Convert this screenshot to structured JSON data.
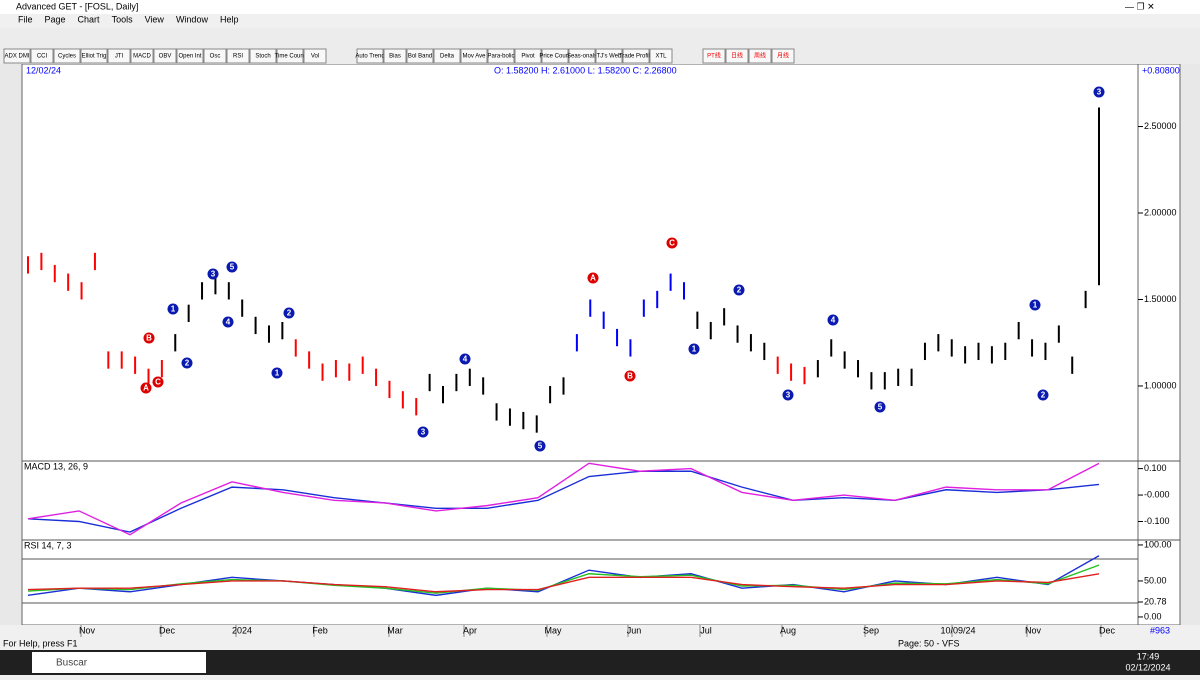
{
  "window": {
    "title": "Advanced GET - [FOSL, Daily]",
    "menu": [
      "File",
      "Page",
      "Chart",
      "Tools",
      "View",
      "Window",
      "Help"
    ]
  },
  "toolbar": [
    "ADX DMI",
    "CCI",
    "Cycles",
    "Elliot Trig",
    "JTI",
    "MACD",
    "OBV",
    "Open Int",
    "Osc",
    "RSI",
    "Stoch",
    "Time Count",
    "Vol",
    "Auto Trend",
    "Bias",
    "Bol Band",
    "Delta",
    "Mov Ave",
    "Para-bolic",
    "Pivot",
    "Price Count",
    "Seas-onals",
    "TJ's Web",
    "Trade Profile",
    "XTL",
    "PT线",
    "日线",
    "周线",
    "月线"
  ],
  "price_chart": {
    "date": "12/02/24",
    "ohlc": "O: 1.58200  H: 2.61000  L: 1.58200  C: 2.26800",
    "change": "+0.80800",
    "ylim": [
      0.572,
      2.85
    ],
    "yticks": [
      {
        "value": 2.5,
        "label": "2.50000"
      },
      {
        "value": 2,
        "label": "2.00000"
      },
      {
        "value": 1.5,
        "label": "1.50000"
      },
      {
        "value": 1,
        "label": "1.00000"
      }
    ],
    "low": [
      1.65,
      1.67,
      1.6,
      1.55,
      1.5,
      1.67,
      1.1,
      1.1,
      1.07,
      1.0,
      1.05,
      1.2,
      1.37,
      1.5,
      1.53,
      1.5,
      1.4,
      1.3,
      1.25,
      1.27,
      1.17,
      1.1,
      1.03,
      1.05,
      1.03,
      1.07,
      1.0,
      0.93,
      0.87,
      0.83,
      0.97,
      0.9,
      0.97,
      1.0,
      0.95,
      0.8,
      0.77,
      0.75,
      0.73,
      0.9,
      0.95,
      1.2,
      1.4,
      1.33,
      1.23,
      1.17,
      1.4,
      1.45,
      1.55,
      1.5,
      1.33,
      1.27,
      1.35,
      1.25,
      1.2,
      1.15,
      1.07,
      1.03,
      1.01,
      1.05,
      1.17,
      1.1,
      1.05,
      0.98,
      0.98,
      1.0,
      1.0,
      1.15,
      1.2,
      1.17,
      1.13,
      1.15,
      1.13,
      1.15,
      1.27,
      1.17,
      1.15,
      1.25,
      1.07,
      1.45,
      1.582
    ],
    "high": [
      1.75,
      1.77,
      1.7,
      1.65,
      1.6,
      1.77,
      1.2,
      1.2,
      1.17,
      1.1,
      1.15,
      1.3,
      1.47,
      1.6,
      1.63,
      1.6,
      1.5,
      1.4,
      1.35,
      1.37,
      1.27,
      1.2,
      1.13,
      1.15,
      1.13,
      1.17,
      1.1,
      1.03,
      0.97,
      0.93,
      1.07,
      1.0,
      1.07,
      1.1,
      1.05,
      0.9,
      0.87,
      0.85,
      0.83,
      1.0,
      1.05,
      1.3,
      1.5,
      1.43,
      1.33,
      1.27,
      1.5,
      1.55,
      1.65,
      1.6,
      1.43,
      1.37,
      1.45,
      1.35,
      1.3,
      1.25,
      1.17,
      1.13,
      1.11,
      1.15,
      1.27,
      1.2,
      1.15,
      1.08,
      1.08,
      1.1,
      1.1,
      1.25,
      1.3,
      1.27,
      1.23,
      1.25,
      1.23,
      1.25,
      1.37,
      1.27,
      1.25,
      1.35,
      1.17,
      1.55,
      2.61
    ],
    "bar_colors": [
      "red",
      "red",
      "red",
      "red",
      "red",
      "red",
      "red",
      "red",
      "red",
      "red",
      "red",
      "black",
      "black",
      "black",
      "black",
      "black",
      "black",
      "black",
      "black",
      "black",
      "red",
      "red",
      "red",
      "red",
      "red",
      "red",
      "red",
      "red",
      "red",
      "red",
      "black",
      "black",
      "black",
      "black",
      "black",
      "black",
      "black",
      "black",
      "black",
      "black",
      "black",
      "blue",
      "blue",
      "blue",
      "blue",
      "blue",
      "blue",
      "blue",
      "blue",
      "blue",
      "black",
      "black",
      "black",
      "black",
      "black",
      "black",
      "red",
      "red",
      "red",
      "black",
      "black",
      "black",
      "black",
      "black",
      "black",
      "black",
      "black",
      "black",
      "black",
      "black",
      "black",
      "black",
      "black",
      "black",
      "black",
      "black",
      "black",
      "black",
      "black",
      "black",
      "black"
    ],
    "wave_labels": [
      "B",
      "A",
      "C",
      "1",
      "2",
      "3",
      "5",
      "4",
      "2",
      "1",
      "3",
      "4",
      "5",
      "A",
      "B",
      "C",
      "1",
      "2",
      "4",
      "3",
      "5",
      "1",
      "2",
      "3"
    ]
  },
  "macd": {
    "label": "MACD 13, 26, 9",
    "ylim": [
      -0.17,
      0.125
    ],
    "yticks": [
      {
        "value": 0.1,
        "label": "0.100"
      },
      {
        "value": 0,
        "label": "-0.000"
      },
      {
        "value": -0.1,
        "label": "-0.100"
      }
    ],
    "series": [
      {
        "color": "#1a2ed6",
        "values": [
          -0.09,
          -0.1,
          -0.14,
          -0.05,
          0.03,
          0.02,
          -0.01,
          -0.03,
          -0.05,
          -0.05,
          -0.02,
          0.07,
          0.09,
          0.09,
          0.03,
          -0.02,
          -0.01,
          -0.02,
          0.02,
          0.01,
          0.02,
          0.04
        ]
      },
      {
        "color": "#e020e0",
        "values": [
          -0.09,
          -0.06,
          -0.15,
          -0.03,
          0.05,
          0.01,
          -0.02,
          -0.03,
          -0.06,
          -0.04,
          -0.01,
          0.12,
          0.09,
          0.1,
          0.01,
          -0.02,
          0.0,
          -0.02,
          0.03,
          0.02,
          0.02,
          0.12
        ]
      }
    ]
  },
  "rsi": {
    "label": "RSI 14, 7, 3",
    "ylim": [
      -7,
      105.5
    ],
    "yticks": [
      {
        "value": 100,
        "label": "100.00"
      },
      {
        "value": 50,
        "label": "50.00"
      },
      {
        "value": 20.78,
        "label": "20.78"
      },
      {
        "value": 0,
        "label": "0.00"
      }
    ],
    "series": [
      {
        "color": "#1a2ed6",
        "values": [
          30,
          40,
          35,
          45,
          55,
          50,
          45,
          40,
          30,
          40,
          35,
          65,
          55,
          60,
          40,
          45,
          35,
          50,
          45,
          55,
          45,
          85
        ]
      },
      {
        "color": "#22c022",
        "values": [
          36,
          40,
          38,
          46,
          52,
          50,
          44,
          40,
          33,
          40,
          37,
          60,
          56,
          58,
          43,
          44,
          38,
          47,
          46,
          52,
          46,
          72
        ]
      },
      {
        "color": "#e02020",
        "values": [
          38,
          40,
          40,
          45,
          50,
          50,
          45,
          42,
          35,
          38,
          38,
          55,
          55,
          55,
          45,
          42,
          40,
          45,
          45,
          50,
          48,
          60
        ]
      }
    ]
  },
  "x_axis": [
    "Nov",
    "Dec",
    "2024",
    "Feb",
    "Mar",
    "Apr",
    "May",
    "Jun",
    "Jul",
    "Aug",
    "Sep",
    "10/09/24",
    "Nov",
    "Dec"
  ],
  "bar_count": "#963",
  "status": {
    "help": "For Help, press F1",
    "page": "Page: 50 - VFS"
  },
  "taskbar": {
    "search": "Buscar",
    "time": "17:49",
    "date": "02/12/2024"
  }
}
